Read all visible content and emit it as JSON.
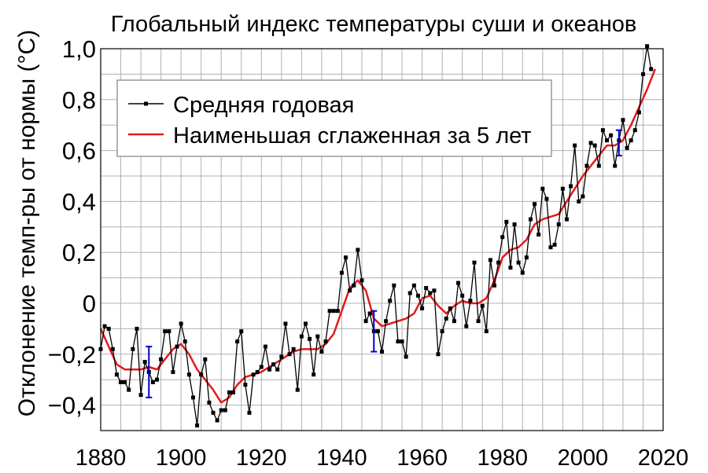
{
  "chart_data": {
    "type": "line",
    "title": "Глобальный индекс температуры суши и океанов",
    "ylabel": "Отклонение темп-ры от нормы (°С)",
    "xlabel": "",
    "xlim": [
      1880,
      2020
    ],
    "ylim": [
      -0.5,
      1.0
    ],
    "x_ticks": [
      1880,
      1900,
      1920,
      1940,
      1960,
      1980,
      2000,
      2020
    ],
    "x_tick_labels": [
      "1880",
      "1900",
      "1920",
      "1940",
      "1960",
      "1980",
      "2000",
      "2020"
    ],
    "y_ticks": [
      -0.4,
      -0.2,
      0,
      0.2,
      0.4,
      0.6,
      0.8,
      1.0
    ],
    "y_tick_labels": [
      "−0,4",
      "−0,2",
      "0",
      "0,2",
      "0,4",
      "0,6",
      "0,8",
      "1,0"
    ],
    "x_minor_step": 5,
    "y_minor_step": 0.1,
    "grid": true,
    "legend_position": "top-left",
    "series": [
      {
        "name": "Средняя годовая",
        "color": "#000000",
        "marker": "square",
        "x": [
          1880,
          1881,
          1882,
          1883,
          1884,
          1885,
          1886,
          1887,
          1888,
          1889,
          1890,
          1891,
          1892,
          1893,
          1894,
          1895,
          1896,
          1897,
          1898,
          1899,
          1900,
          1901,
          1902,
          1903,
          1904,
          1905,
          1906,
          1907,
          1908,
          1909,
          1910,
          1911,
          1912,
          1913,
          1914,
          1915,
          1916,
          1917,
          1918,
          1919,
          1920,
          1921,
          1922,
          1923,
          1924,
          1925,
          1926,
          1927,
          1928,
          1929,
          1930,
          1931,
          1932,
          1933,
          1934,
          1935,
          1936,
          1937,
          1938,
          1939,
          1940,
          1941,
          1942,
          1943,
          1944,
          1945,
          1946,
          1947,
          1948,
          1949,
          1950,
          1951,
          1952,
          1953,
          1954,
          1955,
          1956,
          1957,
          1958,
          1959,
          1960,
          1961,
          1962,
          1963,
          1964,
          1965,
          1966,
          1967,
          1968,
          1969,
          1970,
          1971,
          1972,
          1973,
          1974,
          1975,
          1976,
          1977,
          1978,
          1979,
          1980,
          1981,
          1982,
          1983,
          1984,
          1985,
          1986,
          1987,
          1988,
          1989,
          1990,
          1991,
          1992,
          1993,
          1994,
          1995,
          1996,
          1997,
          1998,
          1999,
          2000,
          2001,
          2002,
          2003,
          2004,
          2005,
          2006,
          2007,
          2008,
          2009,
          2010,
          2011,
          2012,
          2013,
          2014,
          2015,
          2016,
          2017
        ],
        "values": [
          -0.18,
          -0.09,
          -0.1,
          -0.18,
          -0.28,
          -0.31,
          -0.31,
          -0.34,
          -0.18,
          -0.1,
          -0.36,
          -0.23,
          -0.27,
          -0.31,
          -0.3,
          -0.22,
          -0.11,
          -0.11,
          -0.27,
          -0.17,
          -0.08,
          -0.15,
          -0.28,
          -0.37,
          -0.48,
          -0.28,
          -0.22,
          -0.39,
          -0.43,
          -0.46,
          -0.42,
          -0.42,
          -0.35,
          -0.35,
          -0.15,
          -0.11,
          -0.32,
          -0.43,
          -0.28,
          -0.27,
          -0.25,
          -0.17,
          -0.26,
          -0.24,
          -0.26,
          -0.21,
          -0.08,
          -0.2,
          -0.18,
          -0.34,
          -0.13,
          -0.08,
          -0.14,
          -0.28,
          -0.13,
          -0.19,
          -0.15,
          -0.03,
          -0.03,
          -0.03,
          0.12,
          0.18,
          0.05,
          0.07,
          0.21,
          0.09,
          -0.07,
          -0.04,
          -0.11,
          -0.11,
          -0.19,
          -0.07,
          0.01,
          0.07,
          -0.15,
          -0.15,
          -0.21,
          0.04,
          0.07,
          0.03,
          -0.02,
          0.06,
          0.04,
          0.05,
          -0.2,
          -0.11,
          -0.06,
          -0.02,
          -0.07,
          0.08,
          0.03,
          -0.09,
          0.01,
          0.16,
          -0.07,
          -0.01,
          -0.11,
          0.17,
          0.07,
          0.16,
          0.26,
          0.32,
          0.14,
          0.31,
          0.16,
          0.12,
          0.18,
          0.33,
          0.39,
          0.27,
          0.45,
          0.41,
          0.22,
          0.23,
          0.31,
          0.45,
          0.33,
          0.46,
          0.62,
          0.4,
          0.42,
          0.54,
          0.63,
          0.62,
          0.54,
          0.68,
          0.64,
          0.66,
          0.54,
          0.64,
          0.72,
          0.61,
          0.64,
          0.68,
          0.75,
          0.9,
          1.01,
          0.92
        ]
      },
      {
        "name": "Наименьшая сглаженная за 5 лет",
        "color": "#e31a1c",
        "x": [
          1880,
          1882,
          1884,
          1886,
          1888,
          1890,
          1892,
          1894,
          1896,
          1898,
          1900,
          1902,
          1904,
          1906,
          1908,
          1910,
          1912,
          1914,
          1916,
          1918,
          1920,
          1922,
          1924,
          1926,
          1928,
          1930,
          1932,
          1934,
          1936,
          1938,
          1940,
          1942,
          1944,
          1946,
          1948,
          1950,
          1952,
          1954,
          1956,
          1958,
          1960,
          1962,
          1964,
          1966,
          1968,
          1970,
          1972,
          1974,
          1976,
          1978,
          1980,
          1982,
          1984,
          1986,
          1988,
          1990,
          1992,
          1994,
          1996,
          1998,
          2000,
          2002,
          2004,
          2006,
          2008,
          2010,
          2012,
          2014,
          2016,
          2018
        ],
        "values": [
          -0.1,
          -0.17,
          -0.24,
          -0.26,
          -0.26,
          -0.26,
          -0.25,
          -0.26,
          -0.22,
          -0.18,
          -0.16,
          -0.2,
          -0.26,
          -0.3,
          -0.34,
          -0.39,
          -0.37,
          -0.32,
          -0.29,
          -0.28,
          -0.27,
          -0.25,
          -0.23,
          -0.21,
          -0.19,
          -0.18,
          -0.18,
          -0.18,
          -0.16,
          -0.12,
          -0.03,
          0.06,
          0.09,
          0.05,
          -0.06,
          -0.09,
          -0.08,
          -0.07,
          -0.06,
          -0.04,
          0.02,
          0.03,
          -0.01,
          -0.04,
          -0.01,
          0.01,
          0.0,
          0.0,
          0.02,
          0.09,
          0.18,
          0.21,
          0.22,
          0.25,
          0.31,
          0.33,
          0.34,
          0.35,
          0.4,
          0.45,
          0.5,
          0.54,
          0.58,
          0.62,
          0.62,
          0.64,
          0.7,
          0.77,
          0.84,
          0.92
        ]
      }
    ],
    "error_bars": [
      {
        "x": 1892,
        "low": -0.37,
        "high": -0.17,
        "color": "#0000cc"
      },
      {
        "x": 1948,
        "low": -0.19,
        "high": -0.03,
        "color": "#0000cc"
      },
      {
        "x": 2009,
        "low": 0.58,
        "high": 0.68,
        "color": "#0000cc"
      }
    ]
  }
}
